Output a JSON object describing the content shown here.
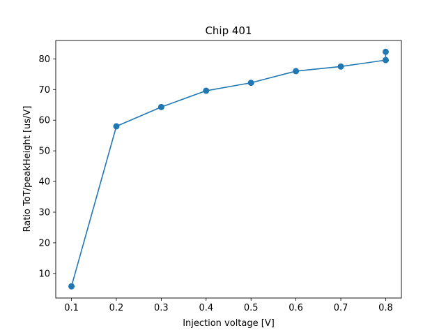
{
  "chart_data": {
    "type": "line",
    "title": "Chip 401",
    "xlabel": "Injection voltage [V]",
    "ylabel": "Ratio ToT/peakHeight [us/V]",
    "xlim": [
      0.065,
      0.835
    ],
    "ylim": [
      2.0,
      86.0
    ],
    "x_ticks": [
      0.1,
      0.2,
      0.3,
      0.4,
      0.5,
      0.6,
      0.7,
      0.8
    ],
    "x_tick_labels": [
      "0.1",
      "0.2",
      "0.3",
      "0.4",
      "0.5",
      "0.6",
      "0.7",
      "0.8"
    ],
    "y_ticks": [
      10,
      20,
      30,
      40,
      50,
      60,
      70,
      80
    ],
    "y_tick_labels": [
      "10",
      "20",
      "30",
      "40",
      "50",
      "60",
      "70",
      "80"
    ],
    "grid": false,
    "series": [
      {
        "color": "#1f77b4",
        "x": [
          0.1,
          0.2,
          0.3,
          0.4,
          0.5,
          0.6,
          0.7,
          0.8,
          0.8
        ],
        "y": [
          5.8,
          58.0,
          64.3,
          69.6,
          72.2,
          76.0,
          77.5,
          79.6,
          82.3
        ]
      }
    ]
  }
}
